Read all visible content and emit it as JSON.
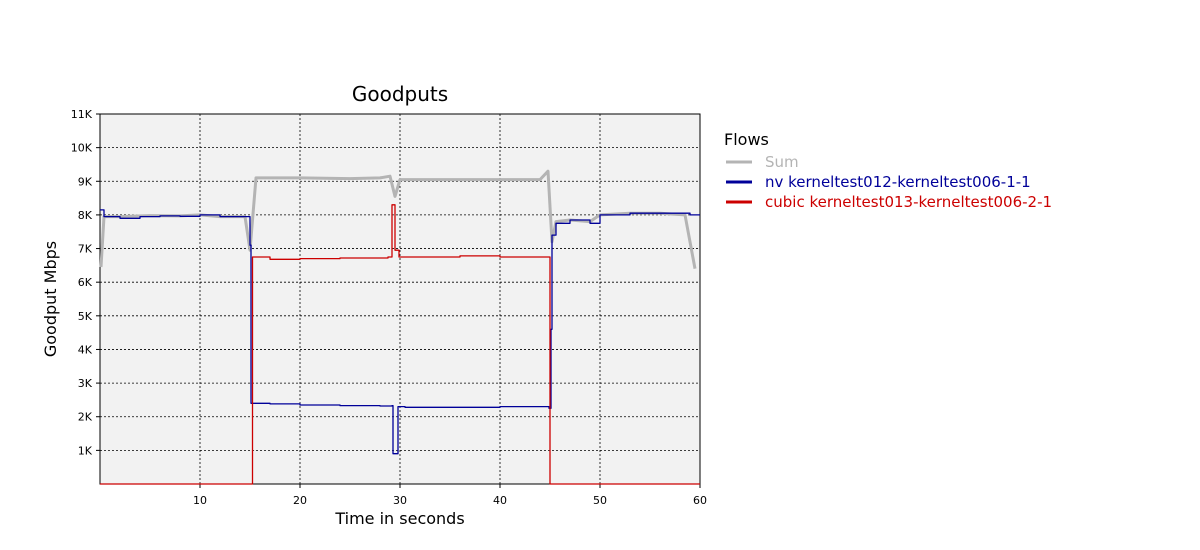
{
  "chart_data": {
    "type": "line",
    "title": "Goodputs",
    "xlabel": "Time in seconds",
    "ylabel": "Goodput Mbps",
    "xlim": [
      0,
      60
    ],
    "ylim": [
      0,
      11000
    ],
    "x_ticks": [
      10,
      20,
      30,
      40,
      50,
      60
    ],
    "x_tick_labels": [
      "10",
      "20",
      "30",
      "40",
      "50",
      "60"
    ],
    "y_ticks": [
      1000,
      2000,
      3000,
      4000,
      5000,
      6000,
      7000,
      8000,
      9000,
      10000,
      11000
    ],
    "y_tick_labels": [
      "1K",
      "2K",
      "3K",
      "4K",
      "5K",
      "6K",
      "7K",
      "8K",
      "9K",
      "10K",
      "11K"
    ],
    "grid": true,
    "legend_title": "Flows",
    "legend_position": "right",
    "series": [
      {
        "name": "Sum",
        "color": "#b4b4b4",
        "step": false,
        "points": [
          [
            0.1,
            6450
          ],
          [
            0.4,
            7950
          ],
          [
            2,
            7950
          ],
          [
            5,
            7980
          ],
          [
            8,
            7970
          ],
          [
            10,
            8000
          ],
          [
            12,
            7950
          ],
          [
            14.5,
            7950
          ],
          [
            15,
            6950
          ],
          [
            15.6,
            9100
          ],
          [
            20,
            9100
          ],
          [
            25,
            9080
          ],
          [
            28,
            9100
          ],
          [
            29,
            9150
          ],
          [
            29.5,
            8550
          ],
          [
            30,
            9050
          ],
          [
            35,
            9050
          ],
          [
            40,
            9050
          ],
          [
            44,
            9050
          ],
          [
            44.8,
            9300
          ],
          [
            45.2,
            7200
          ],
          [
            45.6,
            7800
          ],
          [
            47,
            7850
          ],
          [
            49,
            7800
          ],
          [
            50,
            8000
          ],
          [
            53,
            8050
          ],
          [
            56,
            8050
          ],
          [
            58.5,
            8000
          ],
          [
            59.5,
            6400
          ]
        ]
      },
      {
        "name": "nv kerneltest012-kerneltest006-1-1",
        "color": "#000099",
        "step": true,
        "points": [
          [
            0,
            8150
          ],
          [
            0.4,
            7950
          ],
          [
            2,
            7900
          ],
          [
            4,
            7950
          ],
          [
            6,
            7970
          ],
          [
            8,
            7960
          ],
          [
            10,
            8000
          ],
          [
            12,
            7950
          ],
          [
            14.8,
            7950
          ],
          [
            15,
            7100
          ],
          [
            15.1,
            2400
          ],
          [
            17,
            2380
          ],
          [
            20,
            2350
          ],
          [
            24,
            2330
          ],
          [
            28,
            2320
          ],
          [
            29.2,
            2330
          ],
          [
            29.3,
            900
          ],
          [
            29.8,
            2300
          ],
          [
            30.5,
            2280
          ],
          [
            35,
            2280
          ],
          [
            40,
            2300
          ],
          [
            44.7,
            2300
          ],
          [
            44.9,
            2250
          ],
          [
            45.1,
            4600
          ],
          [
            45.2,
            7400
          ],
          [
            45.6,
            7750
          ],
          [
            47,
            7850
          ],
          [
            49,
            7750
          ],
          [
            50,
            8000
          ],
          [
            53,
            8050
          ],
          [
            56,
            8050
          ],
          [
            59,
            8000
          ],
          [
            60,
            8000
          ]
        ]
      },
      {
        "name": "cubic kerneltest013-kerneltest006-2-1",
        "color": "#cc0000",
        "step": true,
        "points": [
          [
            0,
            0
          ],
          [
            15.2,
            0
          ],
          [
            15.25,
            6750
          ],
          [
            17,
            6680
          ],
          [
            20,
            6700
          ],
          [
            24,
            6720
          ],
          [
            28.8,
            6750
          ],
          [
            29.2,
            8300
          ],
          [
            29.5,
            6950
          ],
          [
            29.9,
            6750
          ],
          [
            32,
            6750
          ],
          [
            36,
            6780
          ],
          [
            40,
            6750
          ],
          [
            44.9,
            6750
          ],
          [
            45,
            0
          ],
          [
            60,
            0
          ]
        ]
      }
    ]
  }
}
